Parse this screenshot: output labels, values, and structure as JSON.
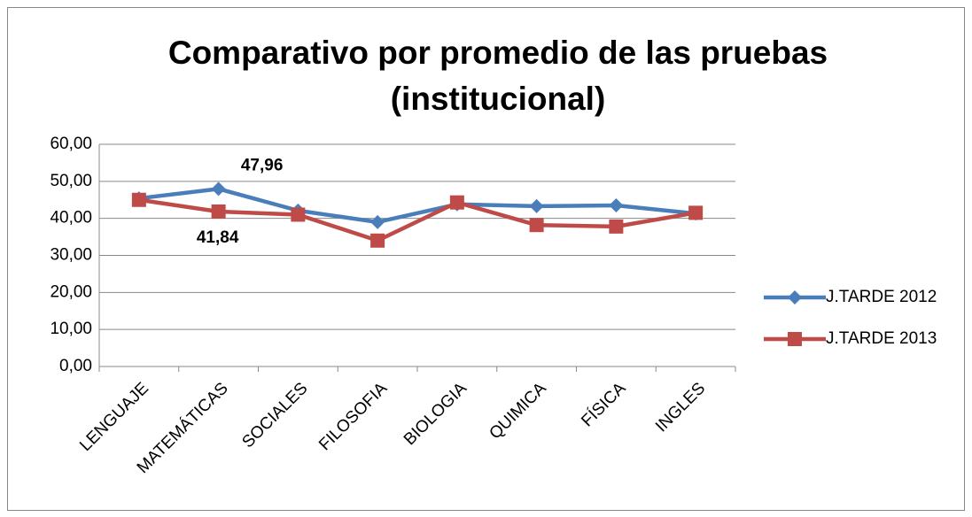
{
  "chart_data": {
    "type": "line",
    "title": "Comparativo por promedio de las pruebas (institucional)",
    "categories": [
      "LENGUAJE",
      "MATEMÁTICAS",
      "SOCIALES",
      "FILOSOFIA",
      "BIOLOGIA",
      "QUIMICA",
      "FÍSICA",
      "INGLES"
    ],
    "series": [
      {
        "name": "J.TARDE 2012",
        "color": "#4a7ebb",
        "marker": "diamond",
        "values": [
          45.4,
          47.96,
          42.1,
          39.0,
          43.8,
          43.3,
          43.5,
          41.3
        ],
        "value_labels": [
          null,
          "47,96",
          null,
          null,
          null,
          null,
          null,
          null
        ]
      },
      {
        "name": "J.TARDE 2013",
        "color": "#be4b48",
        "marker": "square",
        "values": [
          45.0,
          41.84,
          41.0,
          34.0,
          44.3,
          38.2,
          37.8,
          41.5
        ],
        "value_labels": [
          null,
          "41,84",
          null,
          null,
          null,
          null,
          null,
          null
        ]
      }
    ],
    "ylim": [
      0,
      60
    ],
    "yticks": [
      {
        "value": 0,
        "label": "0,00"
      },
      {
        "value": 10,
        "label": "10,00"
      },
      {
        "value": 20,
        "label": "20,00"
      },
      {
        "value": 30,
        "label": "30,00"
      },
      {
        "value": 40,
        "label": "40,00"
      },
      {
        "value": 50,
        "label": "50,00"
      },
      {
        "value": 60,
        "label": "60,00"
      }
    ],
    "grid": true,
    "legend": "right"
  }
}
